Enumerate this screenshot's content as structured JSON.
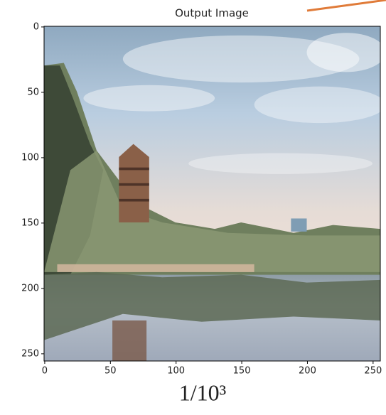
{
  "chart_data": {
    "type": "image",
    "title": "Output Image",
    "caption": "1/10³",
    "xlim": [
      -0.5,
      255.5
    ],
    "ylim": [
      255.5,
      -0.5
    ],
    "xticks": [
      0,
      50,
      100,
      150,
      200,
      250
    ],
    "yticks": [
      0,
      50,
      100,
      150,
      200,
      250
    ]
  }
}
